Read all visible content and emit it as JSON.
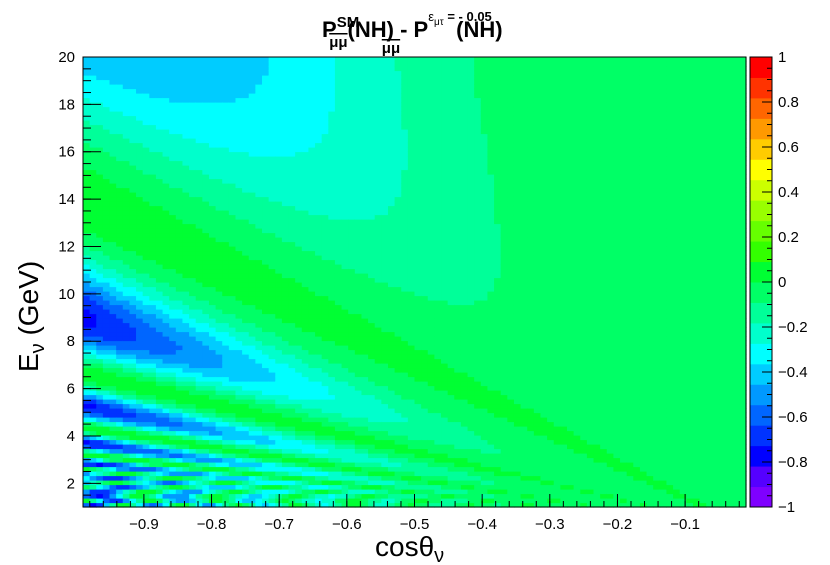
{
  "chart_data": {
    "type": "heatmap",
    "title": {
      "p1": "P",
      "p1_sup": "SM",
      "p1_sub": "μμ",
      "mid": "(NH) - P",
      "p2_sup_eps": "ε",
      "p2_sup_eps_sub": "μτ",
      "p2_sup_value": " = - 0.05",
      "p2_sub": "μμ",
      "end": "(NH)"
    },
    "xlabel": {
      "main": "cosθ",
      "sub": "ν"
    },
    "ylabel": {
      "main": "E",
      "sub": "ν",
      "rest": " (GeV)"
    },
    "xlim": [
      -0.99,
      -0.01
    ],
    "ylim": [
      1,
      20
    ],
    "zlim": [
      -1,
      1
    ],
    "x_ticks": [
      "−0.9",
      "−0.8",
      "−0.7",
      "−0.6",
      "−0.5",
      "−0.4",
      "−0.3",
      "−0.2",
      "−0.1"
    ],
    "x_tick_values": [
      -0.9,
      -0.8,
      -0.7,
      -0.6,
      -0.5,
      -0.4,
      -0.3,
      -0.2,
      -0.1
    ],
    "y_ticks": [
      "2",
      "4",
      "6",
      "8",
      "10",
      "12",
      "14",
      "16",
      "18",
      "20"
    ],
    "y_tick_values": [
      2,
      4,
      6,
      8,
      10,
      12,
      14,
      16,
      18,
      20
    ],
    "z_ticks": [
      "−1",
      "−0.8",
      "−0.6",
      "−0.4",
      "−0.2",
      "0",
      "0.2",
      "0.4",
      "0.6",
      "0.8",
      "1"
    ],
    "z_tick_values": [
      -1,
      -0.8,
      -0.6,
      -0.4,
      -0.2,
      0,
      0.2,
      0.4,
      0.6,
      0.8,
      1
    ],
    "palette": [
      "#7f00ff",
      "#5500ff",
      "#0000ff",
      "#0033ff",
      "#0066ff",
      "#0099ff",
      "#00ccff",
      "#00ffff",
      "#00ffcc",
      "#00ff99",
      "#00ff66",
      "#00ff33",
      "#33ff00",
      "#66ff00",
      "#99ff00",
      "#ccff00",
      "#ffff00",
      "#ffcc00",
      "#ff9900",
      "#ff6600",
      "#ff3300",
      "#ff0000"
    ],
    "grid": false
  }
}
